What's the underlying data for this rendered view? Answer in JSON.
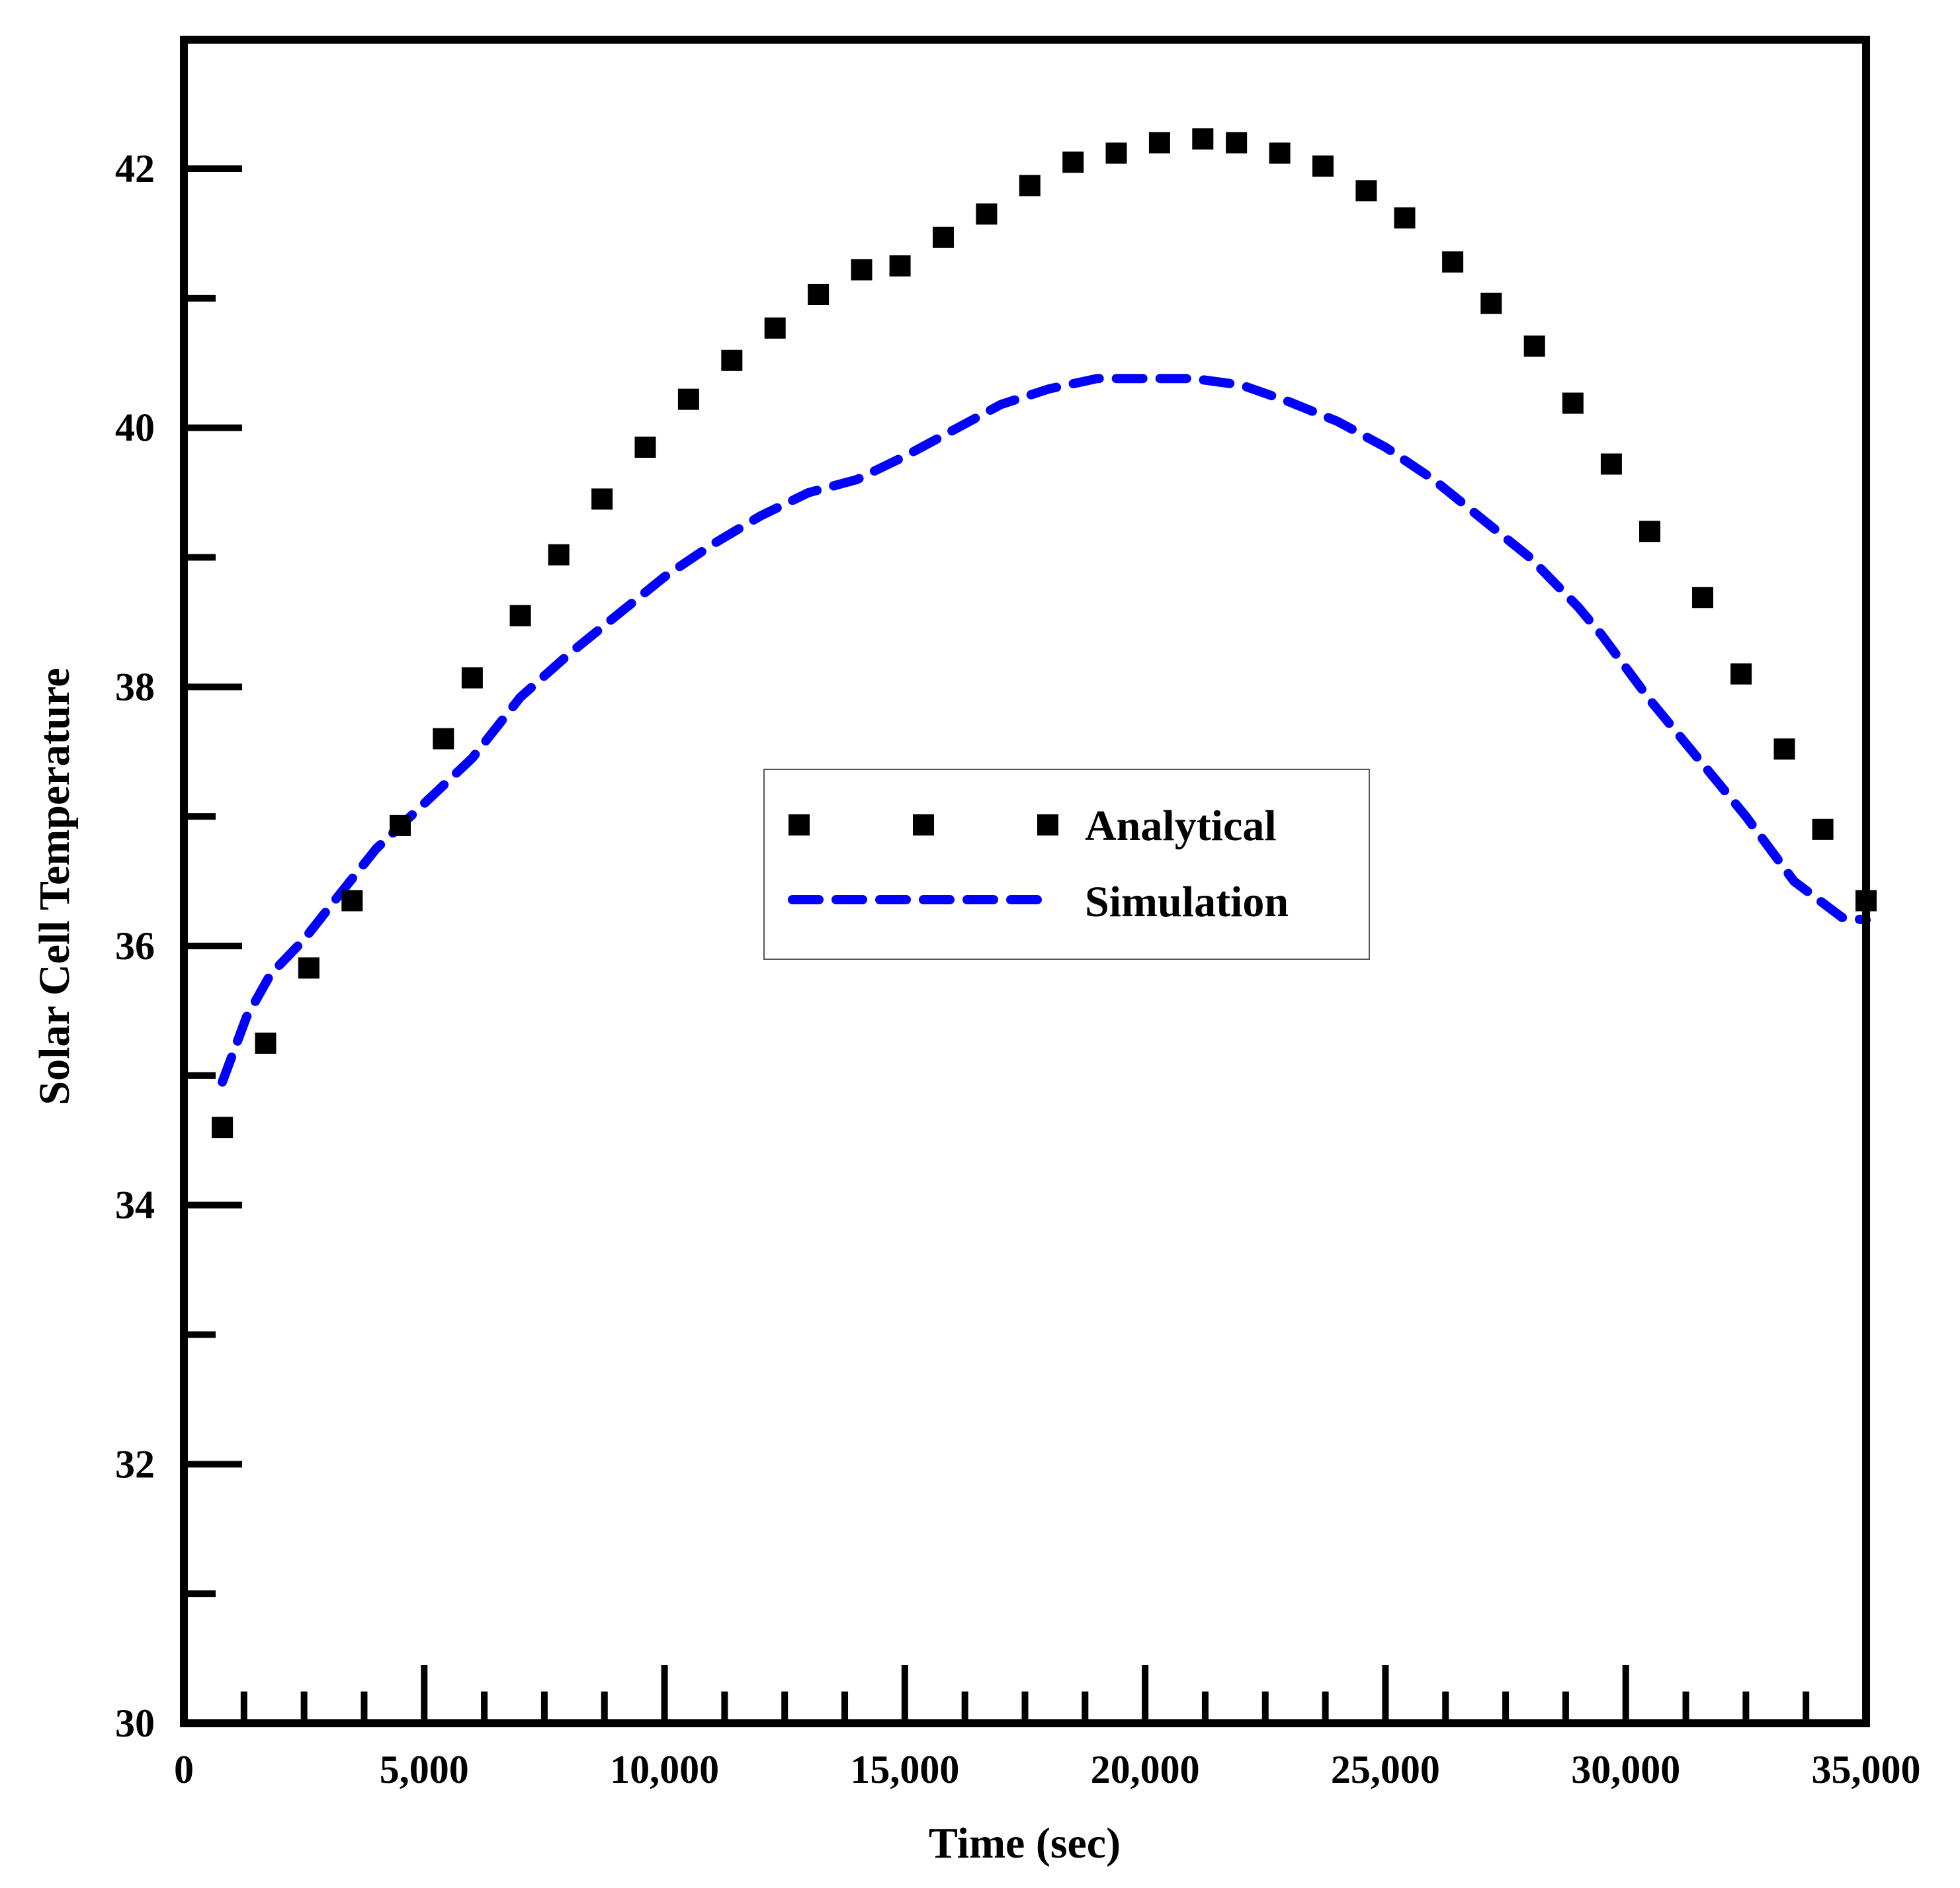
{
  "chart_data": {
    "type": "scatter",
    "title": "",
    "xlabel": "Time (sec)",
    "ylabel": "Solar Cell Temperature",
    "xlim": [
      0,
      35000
    ],
    "ylim": [
      30,
      43
    ],
    "x_ticks": [
      0,
      5000,
      10000,
      15000,
      20000,
      25000,
      30000,
      35000
    ],
    "x_tick_labels": [
      "0",
      "5,000",
      "10,000",
      "15,000",
      "20,000",
      "25,000",
      "30,000",
      "35,000"
    ],
    "x_minor_step": 1250,
    "y_ticks": [
      30,
      32,
      34,
      36,
      38,
      40,
      42
    ],
    "y_tick_labels": [
      "30",
      "32",
      "34",
      "36",
      "38",
      "40",
      "42"
    ],
    "y_minor_step": 1,
    "grid": false,
    "legend_position": "center",
    "colors": {
      "analytical": "#000000",
      "simulation": "#0000ff",
      "axis": "#000000"
    },
    "series": [
      {
        "name": "Analytical",
        "style": "square-markers",
        "x": [
          800,
          1700,
          2600,
          3500,
          4500,
          5400,
          6000,
          7000,
          7800,
          8700,
          9600,
          10500,
          11400,
          12300,
          13200,
          14100,
          14900,
          15800,
          16700,
          17600,
          18500,
          19400,
          20300,
          21200,
          21900,
          22800,
          23700,
          24600,
          25400,
          26400,
          27200,
          28100,
          28900,
          29700,
          30500,
          31600,
          32400,
          33300,
          34100,
          35000
        ],
        "y": [
          34.6,
          35.25,
          35.83,
          36.35,
          36.93,
          37.6,
          38.07,
          38.55,
          39.02,
          39.45,
          39.85,
          40.22,
          40.52,
          40.77,
          41.03,
          41.22,
          41.25,
          41.47,
          41.65,
          41.87,
          42.05,
          42.12,
          42.2,
          42.23,
          42.2,
          42.12,
          42.02,
          41.83,
          41.62,
          41.28,
          40.96,
          40.63,
          40.19,
          39.72,
          39.2,
          38.69,
          38.1,
          37.52,
          36.9,
          36.35
        ]
      },
      {
        "name": "Simulation",
        "style": "dashed-line",
        "x": [
          800,
          1300,
          1800,
          2500,
          3200,
          4000,
          5000,
          6000,
          7000,
          8000,
          9000,
          10000,
          11000,
          12000,
          13000,
          14000,
          15000,
          16000,
          17000,
          18000,
          19000,
          20000,
          21000,
          22000,
          23000,
          24000,
          25000,
          26000,
          27000,
          28000,
          29000,
          29500,
          30500,
          31500,
          32500,
          33500,
          34500,
          35000
        ],
        "y": [
          34.95,
          35.45,
          35.78,
          36.05,
          36.38,
          36.75,
          37.1,
          37.45,
          37.92,
          38.25,
          38.55,
          38.85,
          39.1,
          39.32,
          39.5,
          39.6,
          39.78,
          39.98,
          40.18,
          40.3,
          40.38,
          40.38,
          40.38,
          40.33,
          40.2,
          40.05,
          39.85,
          39.6,
          39.3,
          39.0,
          38.62,
          38.4,
          37.9,
          37.45,
          37.0,
          36.5,
          36.22,
          36.2
        ]
      }
    ]
  }
}
